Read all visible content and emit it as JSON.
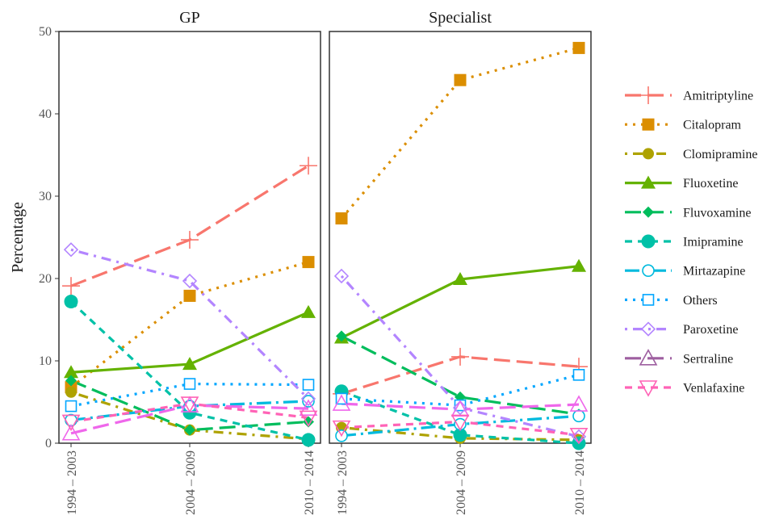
{
  "chart_data": {
    "type": "line",
    "panels": [
      "GP",
      "Specialist"
    ],
    "categories": [
      "1994 – 2003",
      "2004 – 2009",
      "2010 – 2014"
    ],
    "ylabel": "Percentage",
    "xlabel": "",
    "ylim": [
      0,
      50
    ],
    "yticks": [
      0,
      10,
      20,
      30,
      40,
      50
    ],
    "grid": false,
    "legend_position": "right",
    "series": [
      {
        "name": "Amitriptyline",
        "color": "#F8766D",
        "dash": "long",
        "marker": "plus",
        "values": {
          "GP": [
            19.1,
            24.7,
            33.7
          ],
          "Specialist": [
            6.0,
            10.5,
            9.3
          ]
        }
      },
      {
        "name": "Citalopram",
        "color": "#DB8E00",
        "dash": "dotted",
        "marker": "square-filled",
        "values": {
          "GP": [
            6.8,
            17.9,
            22.0
          ],
          "Specialist": [
            27.3,
            44.1,
            48.0
          ]
        }
      },
      {
        "name": "Clomipramine",
        "color": "#AEA200",
        "dash": "dotdash",
        "marker": "circle-filled",
        "values": {
          "GP": [
            6.2,
            1.6,
            0.5
          ],
          "Specialist": [
            1.9,
            0.6,
            0.4
          ]
        }
      },
      {
        "name": "Fluoxetine",
        "color": "#64B200",
        "dash": "solid",
        "marker": "triangle-filled",
        "values": {
          "GP": [
            8.6,
            9.6,
            15.9
          ],
          "Specialist": [
            12.8,
            19.9,
            21.5
          ]
        }
      },
      {
        "name": "Fluvoxamine",
        "color": "#00BD5C",
        "dash": "long",
        "marker": "diamond-filled",
        "values": {
          "GP": [
            7.6,
            1.6,
            2.6
          ],
          "Specialist": [
            13.0,
            5.6,
            3.5
          ]
        }
      },
      {
        "name": "Imipramine",
        "color": "#00C1A7",
        "dash": "dashed",
        "marker": "circle-filled-big",
        "values": {
          "GP": [
            17.2,
            3.7,
            0.4
          ],
          "Specialist": [
            6.3,
            1.0,
            0.0
          ]
        }
      },
      {
        "name": "Mirtazapine",
        "color": "#00BADE",
        "dash": "longdash",
        "marker": "circle-open",
        "values": {
          "GP": [
            2.8,
            4.5,
            5.1
          ],
          "Specialist": [
            0.9,
            2.3,
            3.3
          ]
        }
      },
      {
        "name": "Others",
        "color": "#00A6FF",
        "dash": "dotted",
        "marker": "square-open",
        "values": {
          "GP": [
            4.5,
            7.2,
            7.1
          ],
          "Specialist": [
            5.4,
            4.6,
            8.3
          ]
        }
      },
      {
        "name": "Paroxetine",
        "color": "#B385FF",
        "dash": "dotdash",
        "marker": "diamond-open",
        "values": {
          "GP": [
            23.5,
            19.7,
            5.4
          ],
          "Specialist": [
            20.3,
            4.3,
            0.8
          ]
        }
      },
      {
        "name": "Sertraline",
        "color": "#EF67EB",
        "legend_color": "#9E5FA0",
        "dash": "long",
        "marker": "triangle-open",
        "values": {
          "GP": [
            1.2,
            4.6,
            4.2
          ],
          "Specialist": [
            4.8,
            4.1,
            4.7
          ]
        }
      },
      {
        "name": "Venlafaxine",
        "color": "#FF63B6",
        "dash": "dashed",
        "marker": "triangle-down-open",
        "values": {
          "GP": [
            2.6,
            4.8,
            3.1
          ],
          "Specialist": [
            1.9,
            2.6,
            1.0
          ]
        }
      }
    ]
  }
}
